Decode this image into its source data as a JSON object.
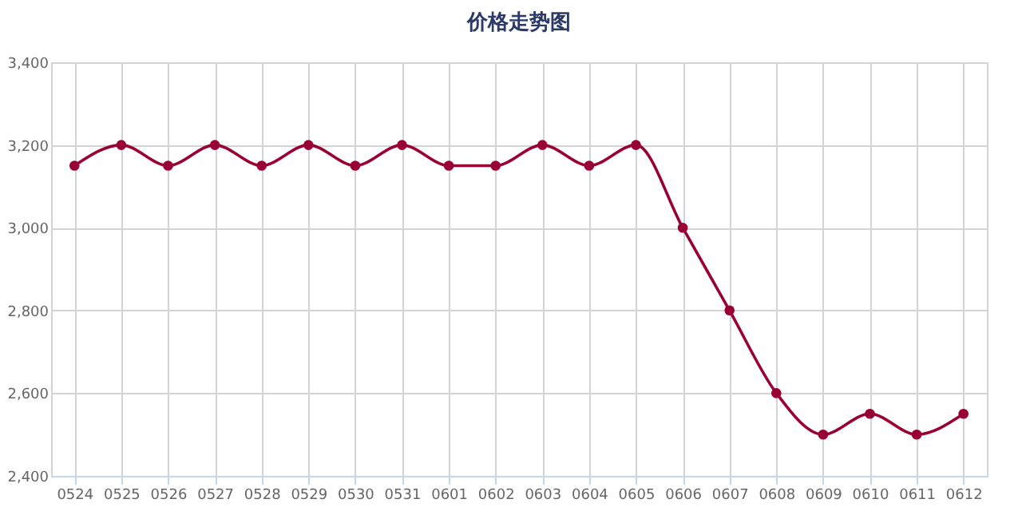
{
  "chart_data": {
    "type": "line",
    "title": "价格走势图",
    "categories": [
      "0524",
      "0525",
      "0526",
      "0527",
      "0528",
      "0529",
      "0530",
      "0531",
      "0601",
      "0602",
      "0603",
      "0604",
      "0605",
      "0606",
      "0607",
      "0608",
      "0609",
      "0610",
      "0611",
      "0612"
    ],
    "series": [
      {
        "color": "#990033",
        "values": [
          3150,
          3200,
          3150,
          3200,
          3150,
          3200,
          3150,
          3200,
          3150,
          3150,
          3200,
          3150,
          3200,
          3000,
          2800,
          2600,
          2500,
          2550,
          2500,
          2550
        ]
      }
    ],
    "ylim": [
      2400,
      3400
    ],
    "yticks": [
      {
        "value": 2400,
        "label": "2,400"
      },
      {
        "value": 2600,
        "label": "2,600"
      },
      {
        "value": 2800,
        "label": "2,800"
      },
      {
        "value": 3000,
        "label": "3,000"
      },
      {
        "value": 3200,
        "label": "3,200"
      },
      {
        "value": 3400,
        "label": "3,400"
      }
    ],
    "grid": true,
    "marker": "circle",
    "line_style": "solid"
  }
}
